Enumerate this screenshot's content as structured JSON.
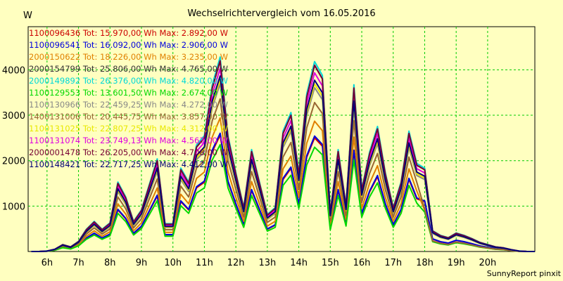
{
  "chart_data": {
    "type": "line",
    "title": "Wechselrichtervergleich vom 16.05.2016",
    "ylabel": "W",
    "xlabel": "",
    "footer": "SunnyReport pinxit",
    "xlim": [
      5.4,
      21.5
    ],
    "ylim": [
      0,
      4950
    ],
    "y_ticks": [
      1000,
      2000,
      3000,
      4000
    ],
    "x_ticks": [
      {
        "label": "6h",
        "v": 6
      },
      {
        "label": "7h",
        "v": 7
      },
      {
        "label": "8h",
        "v": 8
      },
      {
        "label": "9h",
        "v": 9
      },
      {
        "label": "10h",
        "v": 10
      },
      {
        "label": "11h",
        "v": 11
      },
      {
        "label": "12h",
        "v": 12
      },
      {
        "label": "13h",
        "v": 13
      },
      {
        "label": "14h",
        "v": 14
      },
      {
        "label": "15h",
        "v": 15
      },
      {
        "label": "16h",
        "v": 16
      },
      {
        "label": "17h",
        "v": 17
      },
      {
        "label": "18h",
        "v": 18
      },
      {
        "label": "19h",
        "v": 19
      },
      {
        "label": "20h",
        "v": 20
      }
    ],
    "grid": true,
    "legend_position": "top-left",
    "x": [
      5.5,
      5.75,
      6,
      6.25,
      6.5,
      6.75,
      7,
      7.25,
      7.5,
      7.75,
      8,
      8.25,
      8.5,
      8.75,
      9,
      9.25,
      9.5,
      9.75,
      10,
      10.25,
      10.5,
      10.75,
      11,
      11.25,
      11.5,
      11.75,
      12,
      12.25,
      12.5,
      12.75,
      13,
      13.25,
      13.5,
      13.75,
      14,
      14.25,
      14.5,
      14.75,
      15,
      15.25,
      15.5,
      15.75,
      16,
      16.25,
      16.5,
      16.75,
      17,
      17.25,
      17.5,
      17.75,
      18,
      18.25,
      18.5,
      18.75,
      19,
      19.25,
      19.5,
      19.75,
      20,
      20.25,
      20.5,
      20.75,
      21,
      21.25,
      21.5
    ],
    "base": [
      0,
      0,
      10,
      50,
      150,
      100,
      220,
      480,
      650,
      480,
      620,
      1500,
      1180,
      650,
      900,
      1450,
      2000,
      600,
      600,
      1800,
      1500,
      2300,
      2500,
      3600,
      4200,
      2500,
      1700,
      950,
      2200,
      1500,
      800,
      950,
      2600,
      3000,
      1700,
      3400,
      4100,
      3800,
      850,
      2200,
      1000,
      3600,
      1350,
      2150,
      2700,
      1700,
      950,
      1500,
      2600,
      1900,
      1800,
      450,
      350,
      300,
      400,
      350,
      280,
      200,
      150,
      100,
      80,
      40,
      10,
      0,
      0
    ],
    "series": [
      {
        "name": "1100096436",
        "label": "1100096436 Tot: 15.970,00 Wh Max: 2.892,00 W",
        "color": "#cc0000",
        "s": 0.61,
        "tail": 1.0
      },
      {
        "name": "1100096541",
        "label": "1100096541 Tot: 16.092,00 Wh Max: 2.906,00 W",
        "color": "#0000dd",
        "s": 0.62,
        "tail": 1.0
      },
      {
        "name": "2000150622",
        "label": "2000150622 Tot: 18.226,00 Wh Max: 3.235,00 W",
        "color": "#e08000",
        "s": 0.7,
        "tail": 0.6
      },
      {
        "name": "2000154799",
        "label": "2000154799 Tot: 25.806,00 Wh Max: 4.765,00 W",
        "color": "#333333",
        "s": 1.0,
        "tail": 1.0
      },
      {
        "name": "2000149892",
        "label": "2000149892 Tot: 26.376,00 Wh Max: 4.820,00 W",
        "color": "#00d8d8",
        "s": 1.02,
        "tail": 1.0
      },
      {
        "name": "1100129553",
        "label": "1100129553 Tot: 13.601,50 Wh Max: 2.674,00 W",
        "color": "#00d800",
        "s": 0.56,
        "tail": 0.8
      },
      {
        "name": "1100130966",
        "label": "1100130966 Tot: 22.459,25 Wh Max: 4.272,00 W",
        "color": "#888888",
        "s": 0.88,
        "tail": 1.0
      },
      {
        "name": "1400131006",
        "label": "1400131006 Tot: 20.445,75 Wh Max: 3.857,00 W",
        "color": "#996633",
        "s": 0.8,
        "tail": 0.5
      },
      {
        "name": "1100131025",
        "label": "1100131025 Tot: 22.807,25 Wh Max: 4.312,00 W",
        "color": "#e8e800",
        "s": 0.9,
        "tail": 1.0
      },
      {
        "name": "1100131074",
        "label": "1100131074 Tot: 23.749,13 Wh Max: 4.563,00 W",
        "color": "#e000e0",
        "s": 0.96,
        "tail": 1.0
      },
      {
        "name": "2000001478",
        "label": "2000001478 Tot: 26.205,00 Wh Max: 4.708,00 W",
        "color": "#770033",
        "s": 1.0,
        "tail": 1.0
      },
      {
        "name": "1100148421",
        "label": "1100148421 Tot: 22.717,25 Wh Max: 4.412,00 W",
        "color": "#000077",
        "s": 0.92,
        "tail": 1.0
      }
    ]
  }
}
